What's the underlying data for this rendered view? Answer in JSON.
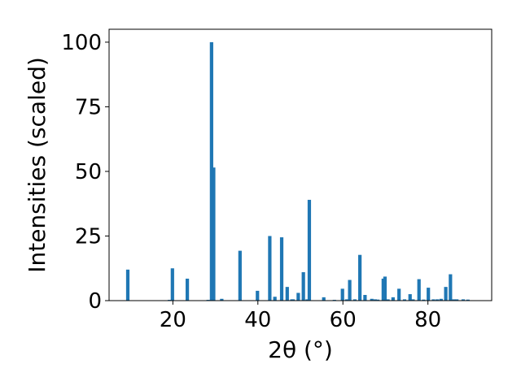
{
  "chart_data": {
    "type": "bar",
    "title": "",
    "xlabel": "2θ (°)",
    "ylabel": "Intensities (scaled)",
    "xlim": [
      5,
      95
    ],
    "ylim": [
      0,
      105
    ],
    "xticks": [
      20,
      40,
      60,
      80
    ],
    "yticks": [
      0,
      25,
      50,
      75,
      100
    ],
    "grid": false,
    "bar_color": "#1f77b4",
    "x": [
      9.4,
      19.2,
      19.9,
      23.4,
      28.3,
      29.1,
      29.6,
      31.5,
      35.8,
      39.9,
      42.8,
      44.0,
      45.6,
      46.9,
      48.0,
      48.3,
      49.5,
      50.7,
      51.6,
      52.1,
      55.5,
      58.0,
      59.9,
      60.9,
      61.6,
      62.8,
      64.0,
      65.2,
      66.8,
      67.6,
      68.2,
      69.5,
      69.9,
      70.6,
      71.8,
      73.2,
      74.5,
      75.8,
      76.5,
      77.9,
      79.0,
      80.1,
      81.3,
      82.2,
      83.1,
      84.2,
      85.3,
      86.1,
      86.8,
      88.3,
      89.4
    ],
    "values": [
      12,
      0.3,
      12.5,
      8.5,
      0.3,
      100,
      51.5,
      0.7,
      19.3,
      3.8,
      25,
      1.5,
      24.5,
      5.3,
      0.5,
      0.5,
      3,
      11,
      0.5,
      39,
      1.3,
      0.3,
      4.6,
      0.5,
      8,
      0.5,
      17.7,
      2.2,
      0.7,
      0.5,
      0.4,
      8.5,
      9.3,
      0.5,
      1.3,
      4.6,
      0.5,
      2.5,
      0.5,
      8.3,
      0.4,
      5,
      0.5,
      0.5,
      0.7,
      5.3,
      10.2,
      0.5,
      0.5,
      0.5,
      0.4
    ]
  }
}
